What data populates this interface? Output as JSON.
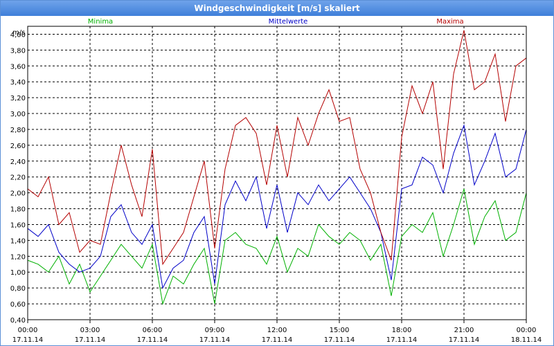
{
  "window": {
    "title": "Windgeschwindigkeit [m/s] skaliert"
  },
  "chart_data": {
    "type": "line",
    "title": "Windgeschwindigkeit [m/s] skaliert",
    "ylabel": "m/s",
    "ylim": [
      0.4,
      4.1
    ],
    "yticks": [
      "4,00",
      "3,80",
      "3,60",
      "3,40",
      "3,20",
      "3,00",
      "2,80",
      "2,60",
      "2,40",
      "2,20",
      "2,00",
      "1,80",
      "1,60",
      "1,40",
      "1,20",
      "1,00",
      "0,80",
      "0,60",
      "0,40"
    ],
    "ytick_values": [
      4.0,
      3.8,
      3.6,
      3.4,
      3.2,
      3.0,
      2.8,
      2.6,
      2.4,
      2.2,
      2.0,
      1.8,
      1.6,
      1.4,
      1.2,
      1.0,
      0.8,
      0.6,
      0.4
    ],
    "xlim": [
      0,
      24
    ],
    "xticks": [
      {
        "hour": 0,
        "time": "00:00",
        "date": "17.11.14"
      },
      {
        "hour": 3,
        "time": "03:00",
        "date": "17.11.14"
      },
      {
        "hour": 6,
        "time": "06:00",
        "date": "17.11.14"
      },
      {
        "hour": 9,
        "time": "09:00",
        "date": "17.11.14"
      },
      {
        "hour": 12,
        "time": "12:00",
        "date": "17.11.14"
      },
      {
        "hour": 15,
        "time": "15:00",
        "date": "17.11.14"
      },
      {
        "hour": 18,
        "time": "18:00",
        "date": "17.11.14"
      },
      {
        "hour": 21,
        "time": "21:00",
        "date": "17.11.14"
      },
      {
        "hour": 24,
        "time": "00:00",
        "date": "18.11.14"
      }
    ],
    "grid": true,
    "legend_position": "top",
    "series": [
      {
        "name": "Minima",
        "color": "#00b000",
        "x": [
          0,
          0.5,
          1,
          1.5,
          2,
          2.5,
          3,
          3.5,
          4,
          4.5,
          5,
          5.5,
          6,
          6.5,
          7,
          7.5,
          8,
          8.5,
          9,
          9.5,
          10,
          10.5,
          11,
          11.5,
          12,
          12.5,
          13,
          13.5,
          14,
          14.5,
          15,
          15.5,
          16,
          16.5,
          17,
          17.5,
          18,
          18.5,
          19,
          19.5,
          20,
          20.5,
          21,
          21.5,
          22,
          22.5,
          23,
          23.5,
          24
        ],
        "values": [
          1.15,
          1.1,
          1.0,
          1.2,
          0.85,
          1.1,
          0.75,
          0.95,
          1.15,
          1.35,
          1.2,
          1.05,
          1.35,
          0.6,
          0.95,
          0.85,
          1.1,
          1.3,
          0.6,
          1.4,
          1.5,
          1.35,
          1.3,
          1.1,
          1.45,
          1.0,
          1.3,
          1.2,
          1.6,
          1.45,
          1.35,
          1.5,
          1.4,
          1.15,
          1.35,
          0.7,
          1.45,
          1.6,
          1.5,
          1.75,
          1.2,
          1.6,
          2.05,
          1.35,
          1.7,
          1.9,
          1.4,
          1.5,
          2.0
        ]
      },
      {
        "name": "Mittelwerte",
        "color": "#0000c8",
        "x": [
          0,
          0.5,
          1,
          1.5,
          2,
          2.5,
          3,
          3.5,
          4,
          4.5,
          5,
          5.5,
          6,
          6.5,
          7,
          7.5,
          8,
          8.5,
          9,
          9.5,
          10,
          10.5,
          11,
          11.5,
          12,
          12.5,
          13,
          13.5,
          14,
          14.5,
          15,
          15.5,
          16,
          16.5,
          17,
          17.5,
          18,
          18.5,
          19,
          19.5,
          20,
          20.5,
          21,
          21.5,
          22,
          22.5,
          23,
          23.5,
          24
        ],
        "values": [
          1.55,
          1.45,
          1.6,
          1.25,
          1.1,
          1.0,
          1.05,
          1.2,
          1.7,
          1.85,
          1.5,
          1.35,
          1.6,
          0.8,
          1.05,
          1.15,
          1.5,
          1.7,
          0.85,
          1.85,
          2.15,
          1.9,
          2.2,
          1.55,
          2.1,
          1.5,
          2.0,
          1.85,
          2.1,
          1.9,
          2.05,
          2.2,
          2.0,
          1.8,
          1.5,
          0.9,
          2.05,
          2.1,
          2.45,
          2.35,
          2.0,
          2.5,
          2.85,
          2.1,
          2.4,
          2.75,
          2.2,
          2.3,
          2.8
        ]
      },
      {
        "name": "Maxima",
        "color": "#b40000",
        "x": [
          0,
          0.5,
          1,
          1.5,
          2,
          2.5,
          3,
          3.5,
          4,
          4.5,
          5,
          5.5,
          6,
          6.5,
          7,
          7.5,
          8,
          8.5,
          9,
          9.5,
          10,
          10.5,
          11,
          11.5,
          12,
          12.5,
          13,
          13.5,
          14,
          14.5,
          15,
          15.5,
          16,
          16.5,
          17,
          17.5,
          18,
          18.5,
          19,
          19.5,
          20,
          20.5,
          21,
          21.5,
          22,
          22.5,
          23,
          23.5,
          24
        ],
        "values": [
          2.05,
          1.95,
          2.2,
          1.6,
          1.75,
          1.25,
          1.4,
          1.35,
          2.0,
          2.6,
          2.1,
          1.7,
          2.55,
          1.1,
          1.3,
          1.5,
          1.95,
          2.4,
          1.3,
          2.3,
          2.85,
          2.95,
          2.75,
          2.1,
          2.85,
          2.2,
          2.95,
          2.6,
          3.0,
          3.3,
          2.9,
          2.95,
          2.3,
          2.0,
          1.5,
          1.15,
          2.7,
          3.35,
          3.0,
          3.4,
          2.3,
          3.5,
          4.05,
          3.3,
          3.4,
          3.75,
          2.9,
          3.6,
          3.7
        ]
      }
    ]
  }
}
